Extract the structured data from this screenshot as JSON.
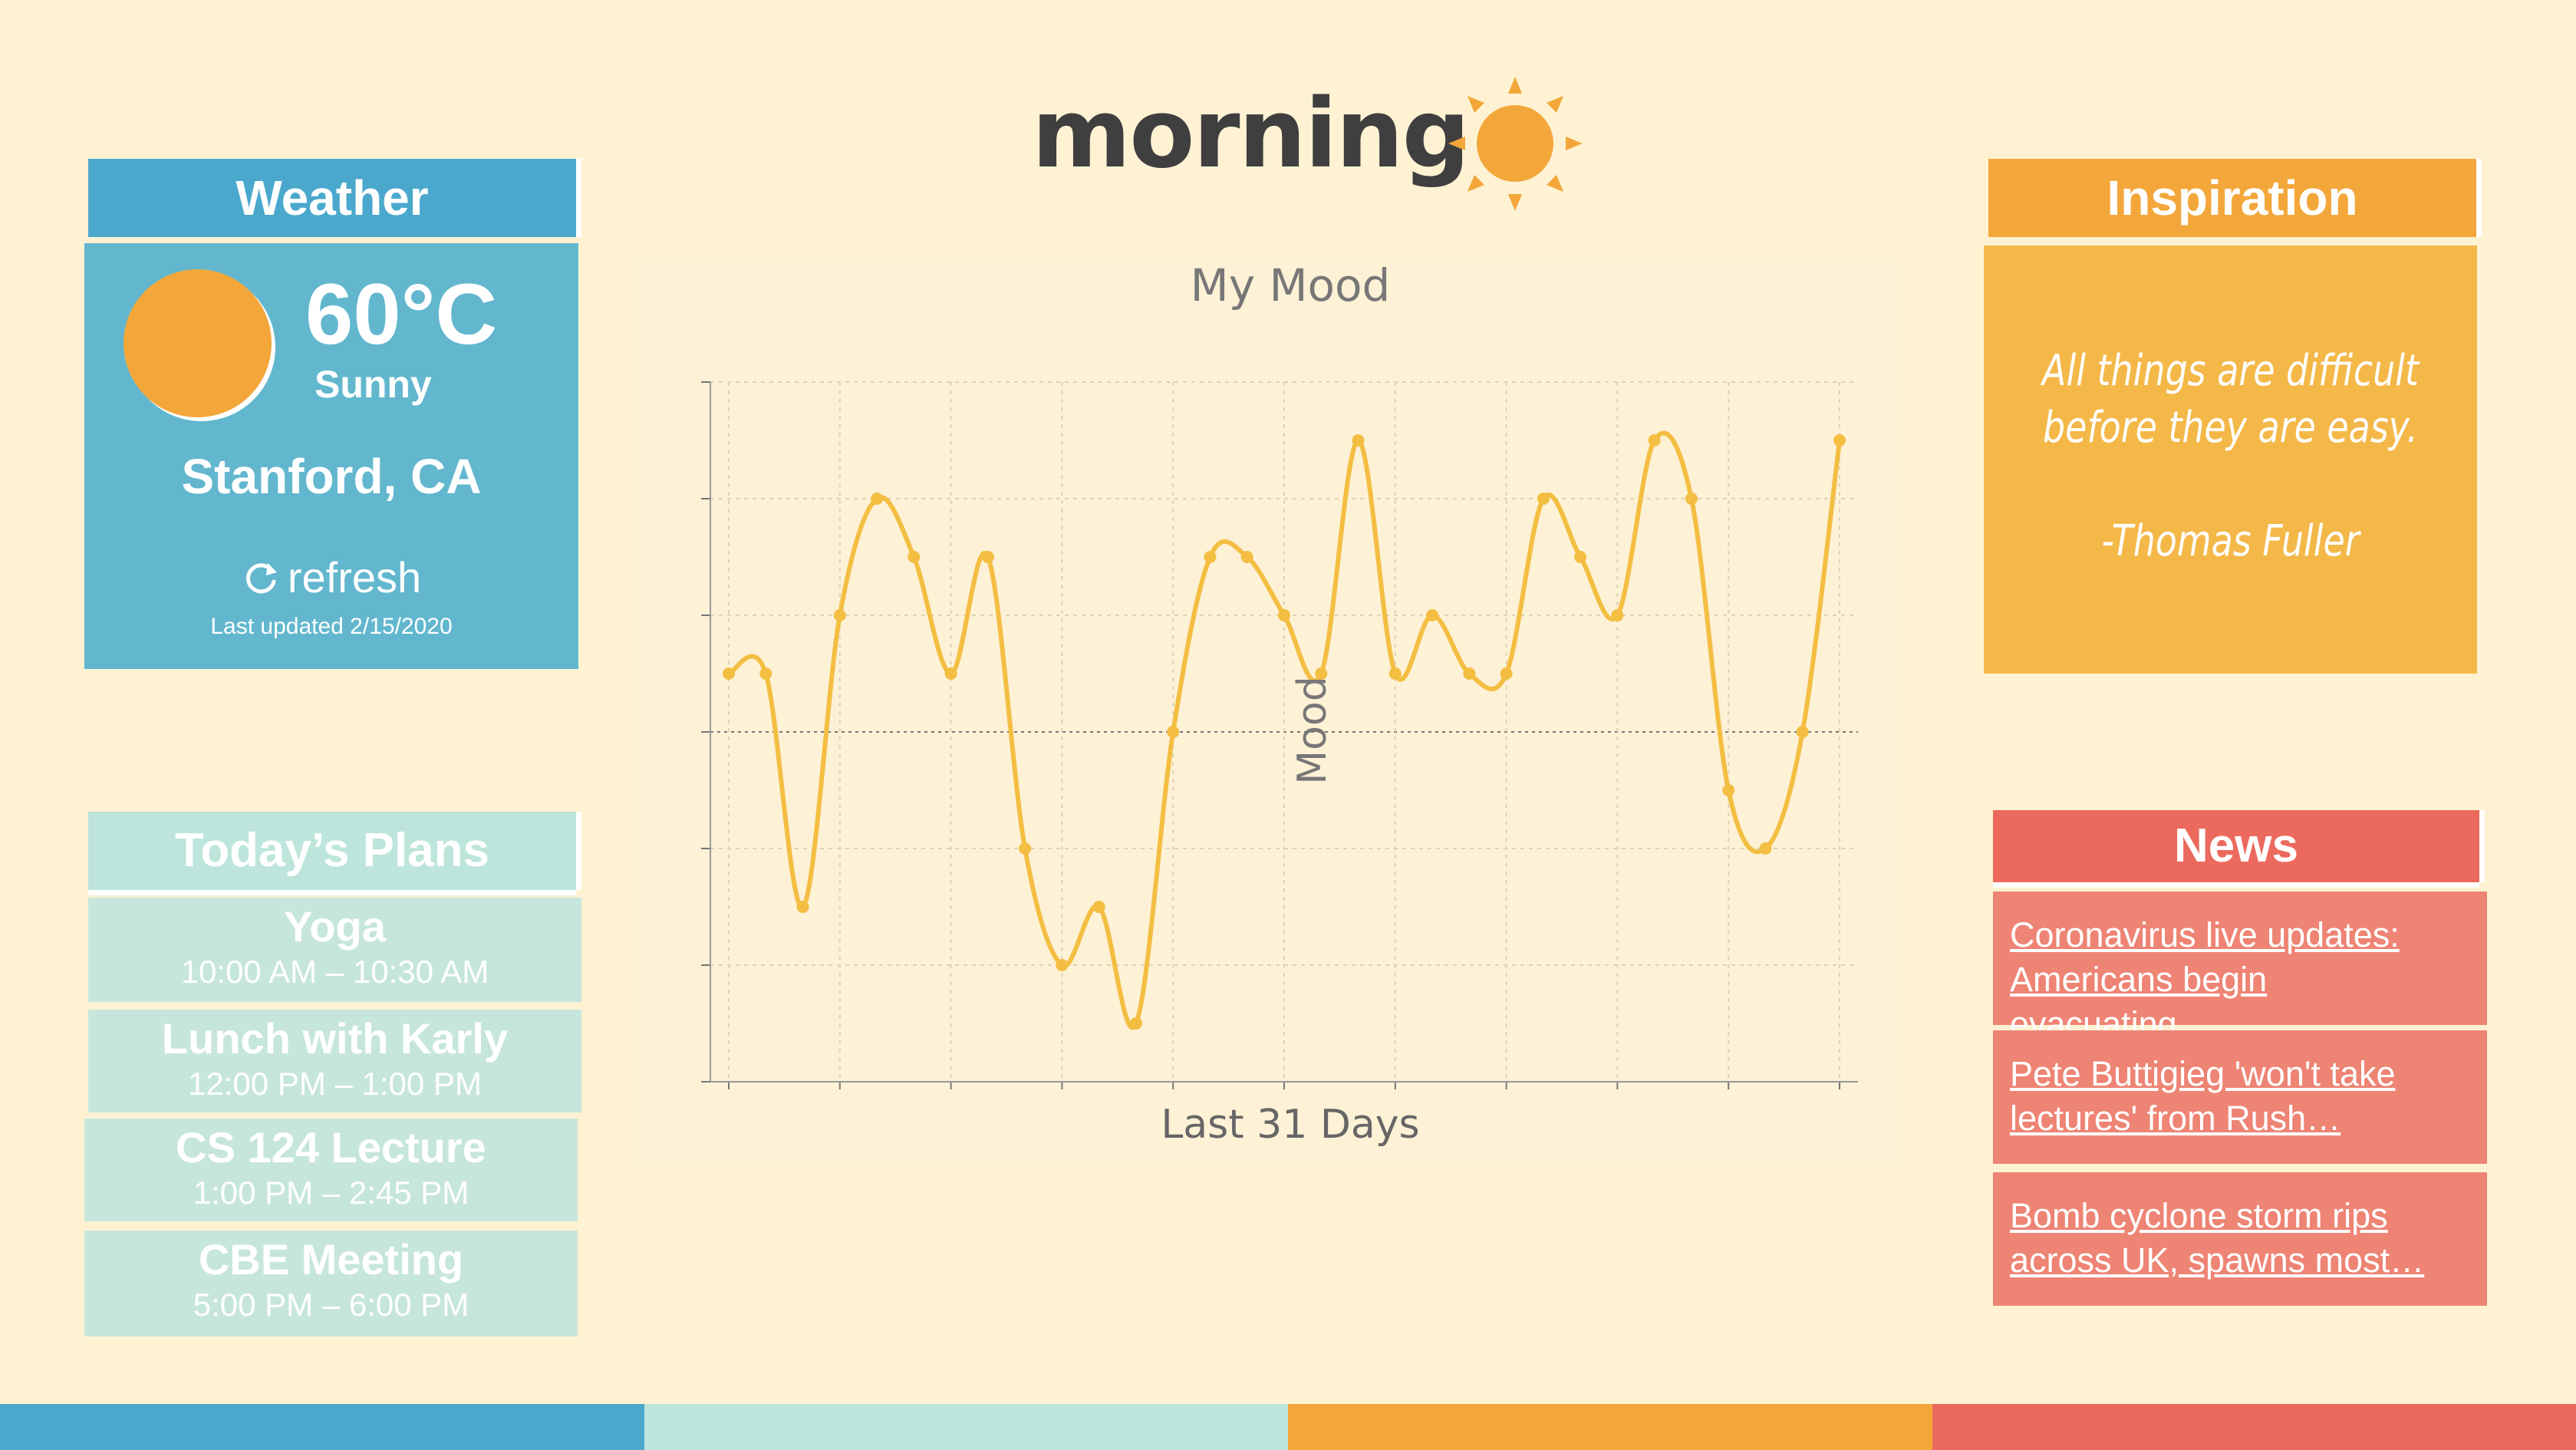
{
  "header": {
    "title": "morning",
    "icon": "sun-icon"
  },
  "weather": {
    "title": "Weather",
    "temperature": "60°C",
    "condition": "Sunny",
    "location": "Stanford, CA",
    "refresh_label": "refresh",
    "last_updated": "Last updated 2/15/2020"
  },
  "plans": {
    "title": "Today’s Plans",
    "items": [
      {
        "title": "Yoga",
        "time": "10:00 AM – 10:30 AM"
      },
      {
        "title": "Lunch with Karly",
        "time": "12:00 PM – 1:00 PM"
      },
      {
        "title": "CS 124 Lecture",
        "time": "1:00 PM – 2:45 PM"
      },
      {
        "title": "CBE Meeting",
        "time": "5:00 PM – 6:00 PM"
      }
    ]
  },
  "chart_data": {
    "type": "line",
    "title": "My Mood",
    "xlabel": "Last 31 Days",
    "ylabel": "Mood",
    "x": [
      1,
      2,
      3,
      4,
      5,
      6,
      7,
      8,
      9,
      10,
      11,
      12,
      13,
      14,
      15,
      16,
      17,
      18,
      19,
      20,
      21,
      22,
      23,
      24,
      25,
      26,
      27,
      28,
      29,
      30,
      31
    ],
    "y": [
      0.5,
      0.5,
      -1.5,
      1,
      2,
      1.5,
      0.5,
      1.5,
      -1,
      -2,
      -1.5,
      -2.5,
      0,
      1.5,
      1.5,
      1,
      0.5,
      2.5,
      0.5,
      1,
      0.5,
      0.5,
      2,
      1.5,
      1,
      2.5,
      2,
      -0.5,
      -1,
      0,
      2.5
    ],
    "ylim": [
      -3,
      3
    ],
    "grid": true,
    "color": "#F3BE41"
  },
  "inspiration": {
    "title": "Inspiration",
    "quote_line1": "All things are difficult",
    "quote_line2": "before they are easy.",
    "author": "-Thomas Fuller"
  },
  "news": {
    "title": "News",
    "items": [
      "Coronavirus live updates:\nAmericans begin evacuating…",
      "Pete Buttigieg 'won't take\nlectures' from Rush…",
      "Bomb cyclone storm rips\nacross UK, spawns most…"
    ]
  },
  "colors": {
    "background": "#FEF2D3",
    "blue": "#4BA8CD",
    "mint": "#BDE5DB",
    "orange": "#F3A73A",
    "red": "#EC6A5D"
  }
}
